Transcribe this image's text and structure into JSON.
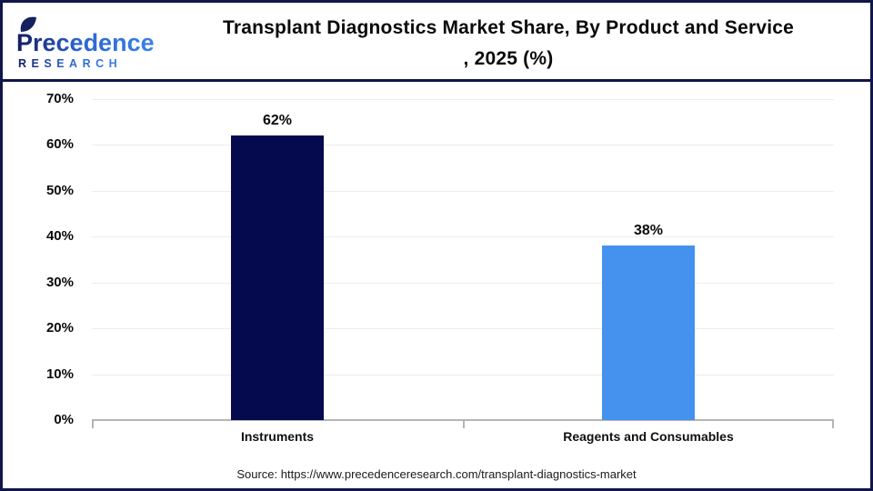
{
  "header": {
    "logo": {
      "brand": "Precedence",
      "sub": "RESEARCH"
    },
    "title_line1": "Transplant Diagnostics Market Share, By Product and Service",
    "title_line2": ", 2025 (%)"
  },
  "chart_data": {
    "type": "bar",
    "title": "Transplant Diagnostics Market Share, By Product and Service , 2025 (%)",
    "categories": [
      "Instruments",
      "Reagents and Consumables"
    ],
    "values": [
      62,
      38
    ],
    "value_labels": [
      "62%",
      "38%"
    ],
    "bar_colors": [
      "#05094e",
      "#4592ee"
    ],
    "xlabel": "",
    "ylabel": "",
    "ylim": [
      0,
      70
    ],
    "ytick_step": 10,
    "ytick_labels": [
      "0%",
      "10%",
      "20%",
      "30%",
      "40%",
      "50%",
      "60%",
      "70%"
    ],
    "grid": true,
    "legend": false
  },
  "footer": {
    "source": "Source: https://www.precedenceresearch.com/transplant-diagnostics-market"
  },
  "colors": {
    "frame_border": "#10164a",
    "gridline": "#ededed",
    "axis": "#b5b5b5",
    "logo_dark": "#141b63",
    "logo_blue": "#3b82e8"
  }
}
